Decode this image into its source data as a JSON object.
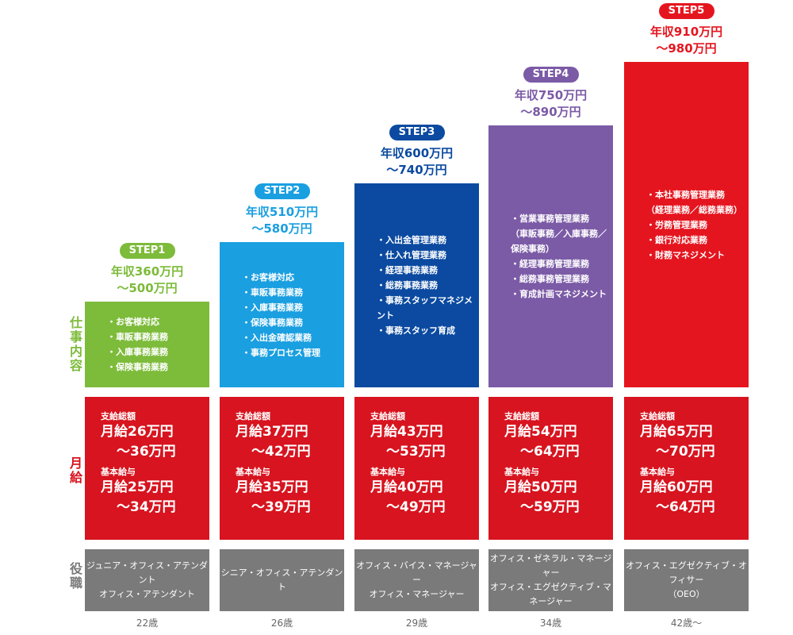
{
  "row_labels": {
    "work": "仕事内容",
    "salary": "月給",
    "position": "役職"
  },
  "steps": [
    {
      "label": "STEP1",
      "color": "#7dbb3a",
      "annual": [
        "年収360万円",
        "～500万円"
      ],
      "duties": [
        "・お客様対応",
        "・車販事務業務",
        "・入庫事務業務",
        "・保険事務業務"
      ],
      "total_label": "支給総額",
      "total": [
        "月給26万円",
        "～36万円"
      ],
      "base_label": "基本給与",
      "base": [
        "月給25万円",
        "～34万円"
      ],
      "position": [
        "ジュニア・オフィス・アテンダント",
        "オフィス・アテンダント"
      ],
      "age": "22歳"
    },
    {
      "label": "STEP2",
      "color": "#1a9fe0",
      "annual": [
        "年収510万円",
        "～580万円"
      ],
      "duties": [
        "・お客様対応",
        "・車販事務業務",
        "・入庫事務業務",
        "・保険事務業務",
        "・入出金確認業務",
        "・事務プロセス管理"
      ],
      "total_label": "支給総額",
      "total": [
        "月給37万円",
        "～42万円"
      ],
      "base_label": "基本給与",
      "base": [
        "月給35万円",
        "～39万円"
      ],
      "position": [
        "シニア・オフィス・アテンダント"
      ],
      "age": "26歳"
    },
    {
      "label": "STEP3",
      "color": "#0b4aa0",
      "annual": [
        "年収600万円",
        "～740万円"
      ],
      "duties": [
        "・入出金管理業務",
        "・仕入れ管理業務",
        "・経理事務業務",
        "・総務事務業務",
        "・事務スタッフマネジメント",
        "・事務スタッフ育成"
      ],
      "total_label": "支給総額",
      "total": [
        "月給43万円",
        "～53万円"
      ],
      "base_label": "基本給与",
      "base": [
        "月給40万円",
        "～49万円"
      ],
      "position": [
        "オフィス・バイス・マネージャー",
        "オフィス・マネージャー"
      ],
      "age": "29歳"
    },
    {
      "label": "STEP4",
      "color": "#7b5aa6",
      "annual": [
        "年収750万円",
        "～890万円"
      ],
      "duties": [
        "・営業事務管理業務",
        "（車販事務／入庫事務／保険事務）",
        "・経理事務管理業務",
        "・総務事務管理業務",
        "・育成計画マネジメント"
      ],
      "total_label": "支給総額",
      "total": [
        "月給54万円",
        "～64万円"
      ],
      "base_label": "基本給与",
      "base": [
        "月給50万円",
        "～59万円"
      ],
      "position": [
        "オフィス・ゼネラル・マネージャー",
        "オフィス・エグゼクティブ・マネージャー"
      ],
      "age": "34歳"
    },
    {
      "label": "STEP5",
      "color": "#e5151f",
      "annual": [
        "年収910万円",
        "～980万円"
      ],
      "duties": [
        "・本社事務管理業務",
        "（経理業務／総務業務）",
        "・労務管理業務",
        "・銀行対応業務",
        "・財務マネジメント"
      ],
      "total_label": "支給総額",
      "total": [
        "月給65万円",
        "～70万円"
      ],
      "base_label": "基本給与",
      "base": [
        "月給60万円",
        "～64万円"
      ],
      "position": [
        "オフィス・エグゼクティブ・オフィサー",
        "（OEO）"
      ],
      "age": "42歳～"
    }
  ]
}
